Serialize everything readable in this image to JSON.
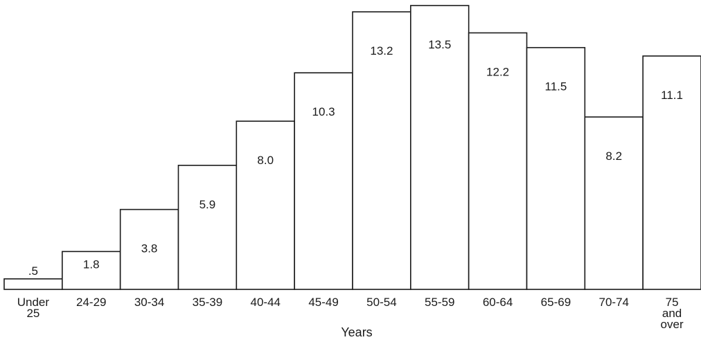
{
  "chart_data": {
    "type": "bar",
    "title": "",
    "xlabel": "Years",
    "ylabel": "",
    "categories": [
      [
        "Under",
        "25"
      ],
      [
        "24-29"
      ],
      [
        "30-34"
      ],
      [
        "35-39"
      ],
      [
        "40-44"
      ],
      [
        "45-49"
      ],
      [
        "50-54"
      ],
      [
        "55-59"
      ],
      [
        "60-64"
      ],
      [
        "65-69"
      ],
      [
        "70-74"
      ],
      [
        "75",
        "and",
        "over"
      ]
    ],
    "values": [
      0.5,
      1.8,
      3.8,
      5.9,
      8.0,
      10.3,
      13.2,
      13.5,
      12.2,
      11.5,
      8.2,
      11.1
    ],
    "value_labels": [
      ".5",
      "1.8",
      "3.8",
      "5.9",
      "8.0",
      "10.3",
      "13.2",
      "13.5",
      "12.2",
      "11.5",
      "8.2",
      "11.1"
    ],
    "ylim": [
      0,
      13.5
    ],
    "grid": false,
    "legend": "none",
    "colors": {
      "bar_fill": "#ffffff",
      "bar_stroke": "#1a1a1a",
      "text": "#1a1a1a"
    }
  }
}
